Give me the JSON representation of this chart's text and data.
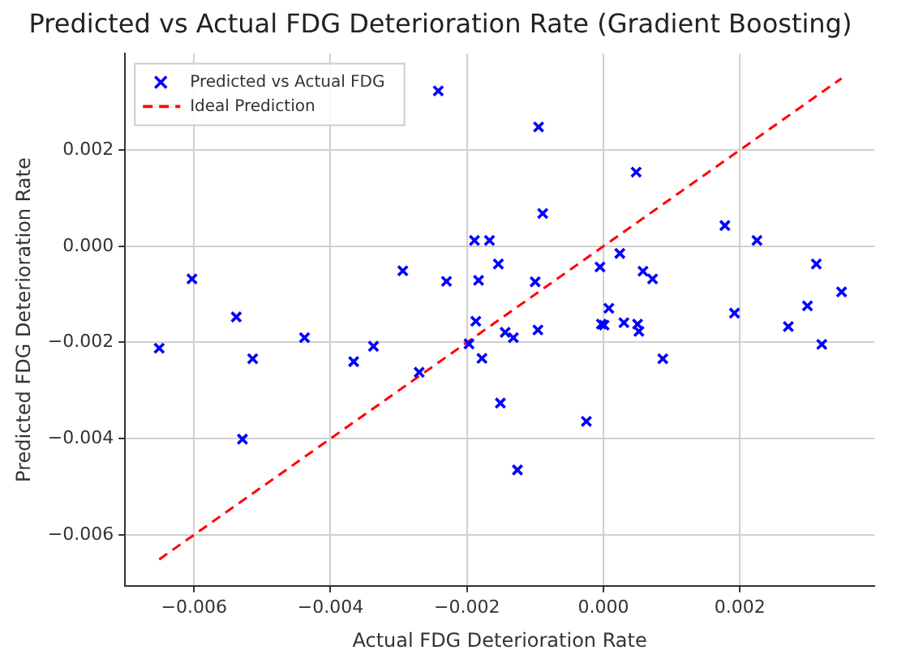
{
  "chart_data": {
    "type": "scatter",
    "title": "Predicted vs Actual FDG Deterioration Rate (Gradient Boosting)",
    "xlabel": "Actual FDG Deterioration Rate",
    "ylabel": "Predicted FDG Deterioration Rate",
    "xlim": [
      -0.00701,
      0.00397
    ],
    "ylim": [
      -0.00706,
      0.004
    ],
    "xticks": [
      {
        "value": -0.006,
        "label": "−0.006"
      },
      {
        "value": -0.004,
        "label": "−0.004"
      },
      {
        "value": -0.002,
        "label": "−0.002"
      },
      {
        "value": 0,
        "label": "0.000"
      },
      {
        "value": 0.002,
        "label": "0.002"
      }
    ],
    "yticks": [
      {
        "value": -0.006,
        "label": "−0.006"
      },
      {
        "value": -0.004,
        "label": "−0.004"
      },
      {
        "value": -0.002,
        "label": "−0.002"
      },
      {
        "value": 0,
        "label": "0.000"
      },
      {
        "value": 0.002,
        "label": "0.002"
      }
    ],
    "grid": true,
    "legend": "top left",
    "series": [
      {
        "name": "Predicted vs Actual FDG",
        "color": "#0000ff",
        "marker": "cross",
        "x": [
          -0.00651,
          -0.00603,
          -0.00538,
          -0.00529,
          -0.00514,
          -0.00438,
          -0.00366,
          -0.00337,
          -0.00294,
          -0.0027,
          -0.00242,
          -0.0023,
          -0.00197,
          -0.00189,
          -0.00183,
          -0.00187,
          -0.00178,
          -0.00167,
          -0.00154,
          -0.00151,
          -0.00144,
          -0.00132,
          -0.00126,
          -0.001,
          -0.00096,
          -0.00095,
          -0.00089,
          -0.00025,
          -5e-05,
          -3e-05,
          1e-05,
          8e-05,
          0.00024,
          0.0003,
          0.00048,
          0.0005,
          0.00052,
          0.00058,
          0.00072,
          0.00087,
          0.00178,
          0.00192,
          0.00225,
          0.00271,
          0.00299,
          0.00312,
          0.0032,
          0.00349
        ],
        "values": [
          -0.00212,
          -0.00068,
          -0.00147,
          -0.00401,
          -0.00234,
          -0.0019,
          -0.0024,
          -0.00208,
          -0.00051,
          -0.00262,
          0.00323,
          -0.00073,
          -0.00203,
          0.00012,
          -0.00071,
          -0.00156,
          -0.00233,
          0.00012,
          -0.00037,
          -0.00326,
          -0.00179,
          -0.0019,
          -0.00465,
          -0.00074,
          -0.00174,
          0.00248,
          0.00068,
          -0.00364,
          -0.00043,
          -0.00162,
          -0.00164,
          -0.00129,
          -0.00015,
          -0.00159,
          0.00154,
          -0.00162,
          -0.00177,
          -0.00052,
          -0.00068,
          -0.00234,
          0.00043,
          -0.00139,
          0.00012,
          -0.00167,
          -0.00124,
          -0.00037,
          -0.00204,
          -0.00095
        ]
      },
      {
        "name": "Ideal Prediction",
        "type": "line",
        "color": "#ff0000",
        "line_style": "dashed",
        "marker": "none",
        "x": [
          -0.00651,
          0.00349
        ],
        "values": [
          -0.00651,
          0.00349
        ]
      }
    ]
  }
}
